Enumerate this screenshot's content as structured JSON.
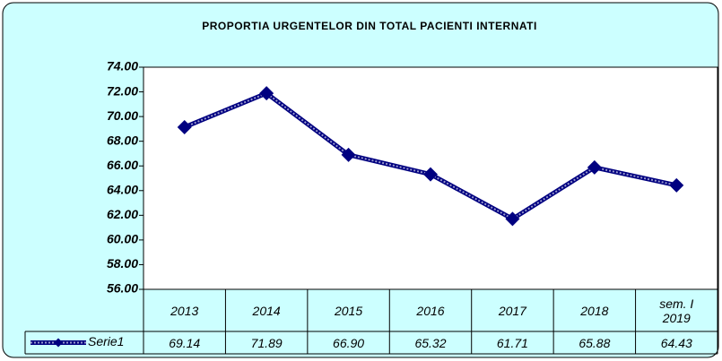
{
  "chart_data": {
    "type": "line",
    "title": "PROPORTIA URGENTELOR DIN TOTAL PACIENTI INTERNATI",
    "categories": [
      "2013",
      "2014",
      "2015",
      "2016",
      "2017",
      "2018",
      "sem. I 2019"
    ],
    "series": [
      {
        "name": "Serie1",
        "color": "#000080",
        "values": [
          69.14,
          71.89,
          66.9,
          65.32,
          61.71,
          65.88,
          64.43
        ],
        "value_labels": [
          "69.14",
          "71.89",
          "66.90",
          "65.32",
          "61.71",
          "65.88",
          "64.43"
        ]
      }
    ],
    "ylim": [
      56,
      74
    ],
    "yticks": [
      {
        "value": 56,
        "label": "56.00"
      },
      {
        "value": 58,
        "label": "58.00"
      },
      {
        "value": 60,
        "label": "60.00"
      },
      {
        "value": 62,
        "label": "62.00"
      },
      {
        "value": 64,
        "label": "64.00"
      },
      {
        "value": 66,
        "label": "66.00"
      },
      {
        "value": 68,
        "label": "68.00"
      },
      {
        "value": 70,
        "label": "70.00"
      },
      {
        "value": 72,
        "label": "72.00"
      },
      {
        "value": 74,
        "label": "74.00"
      }
    ],
    "grid": false
  }
}
